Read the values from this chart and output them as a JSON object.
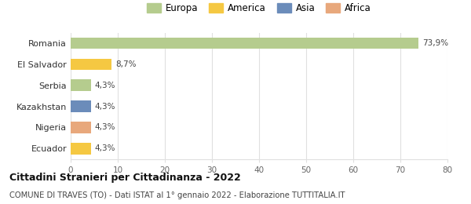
{
  "categories": [
    "Romania",
    "El Salvador",
    "Serbia",
    "Kazakhstan",
    "Nigeria",
    "Ecuador"
  ],
  "values": [
    73.9,
    8.7,
    4.3,
    4.3,
    4.3,
    4.3
  ],
  "labels": [
    "73,9%",
    "8,7%",
    "4,3%",
    "4,3%",
    "4,3%",
    "4,3%"
  ],
  "colors": [
    "#b5cc8e",
    "#f5c842",
    "#b5cc8e",
    "#6b8cba",
    "#e8a87c",
    "#f5c842"
  ],
  "legend_labels": [
    "Europa",
    "America",
    "Asia",
    "Africa"
  ],
  "legend_colors": [
    "#b5cc8e",
    "#f5c842",
    "#6b8cba",
    "#e8a87c"
  ],
  "xlim": [
    0,
    80
  ],
  "xticks": [
    0,
    10,
    20,
    30,
    40,
    50,
    60,
    70,
    80
  ],
  "title": "Cittadini Stranieri per Cittadinanza - 2022",
  "subtitle": "COMUNE DI TRAVES (TO) - Dati ISTAT al 1° gennaio 2022 - Elaborazione TUTTITALIA.IT",
  "bg_color": "#ffffff",
  "grid_color": "#e0e0e0",
  "bar_height": 0.55
}
